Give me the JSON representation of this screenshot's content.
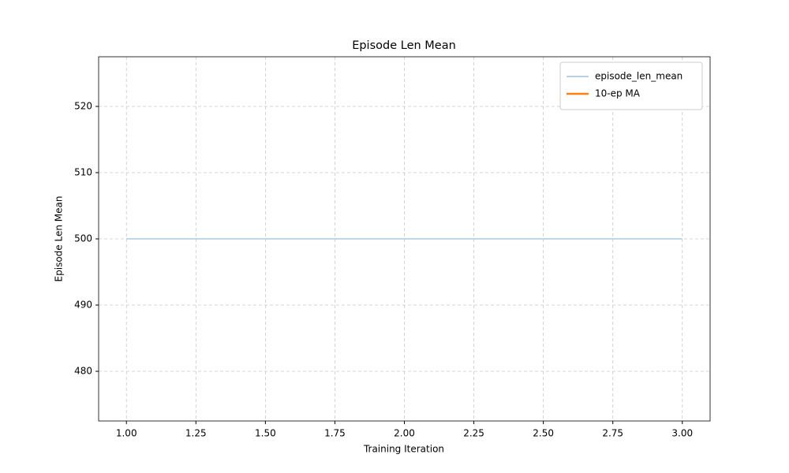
{
  "chart_data": {
    "type": "line",
    "title": "Episode Len Mean",
    "x_label": "Training Iteration",
    "y_label": "Episode Len Mean",
    "x": [
      1,
      2,
      3
    ],
    "series": [
      {
        "name": "episode_len_mean",
        "color": "#a9cbe6",
        "values": [
          500,
          500,
          500
        ]
      },
      {
        "name": "10-ep MA",
        "color": "#ff7f0e",
        "values": [
          null,
          null,
          null
        ]
      }
    ],
    "xlim": [
      0.9,
      3.1
    ],
    "xticks": [
      {
        "value": 1,
        "label": "1.00"
      },
      {
        "value": 1.25,
        "label": "1.25"
      },
      {
        "value": 1.5,
        "label": "1.50"
      },
      {
        "value": 1.75,
        "label": "1.75"
      },
      {
        "value": 2,
        "label": "2.00"
      },
      {
        "value": 2.25,
        "label": "2.25"
      },
      {
        "value": 2.5,
        "label": "2.50"
      },
      {
        "value": 2.75,
        "label": "2.75"
      },
      {
        "value": 3,
        "label": "3.00"
      }
    ],
    "ylim": [
      472.5,
      527.5
    ],
    "yticks": [
      480,
      490,
      500,
      510,
      520
    ],
    "grid": true,
    "legend": "upper right"
  }
}
